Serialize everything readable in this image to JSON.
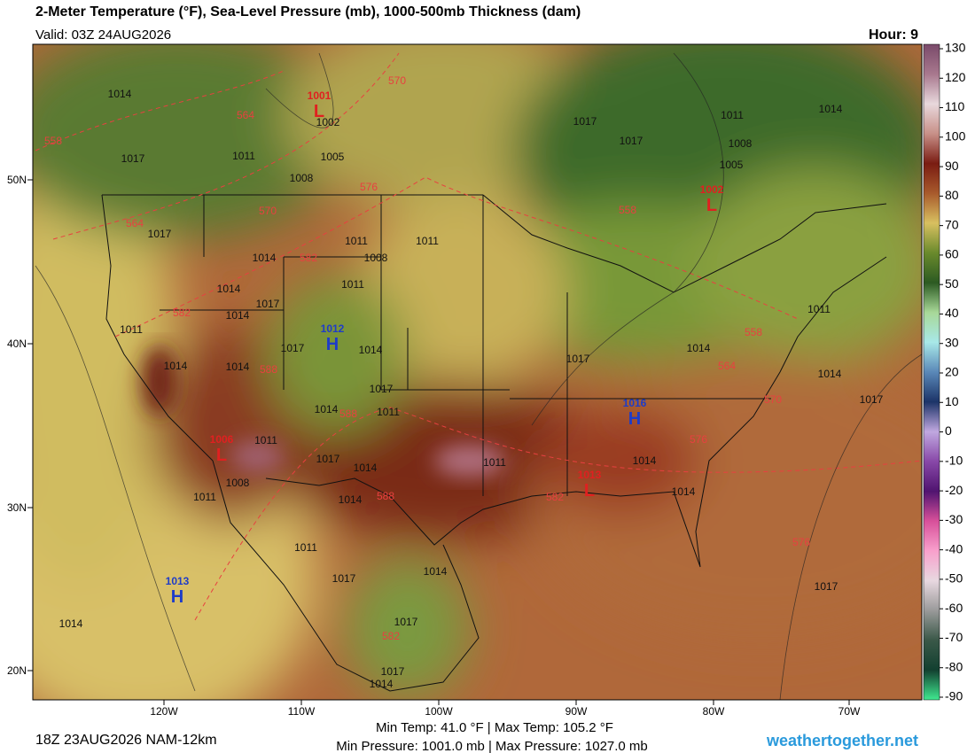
{
  "header": {
    "title": "2-Meter Temperature (°F), Sea-Level Pressure (mb), 1000-500mb Thickness (dam)",
    "valid": "Valid: 03Z 24AUG2026",
    "hour": "Hour: 9"
  },
  "map": {
    "lon_labels": [
      "120W",
      "110W",
      "100W",
      "90W",
      "80W",
      "70W"
    ],
    "lat_labels": [
      "50N",
      "40N",
      "30N",
      "20N"
    ],
    "pressure_centers": [
      {
        "letter": "H",
        "label": "1013",
        "color": "#1e3cc8"
      },
      {
        "letter": "H",
        "label": "1016",
        "color": "#1e3cc8"
      },
      {
        "letter": "H",
        "label": "1012",
        "color": "#1e3cc8"
      },
      {
        "letter": "L",
        "label": "1001",
        "color": "#e02020"
      },
      {
        "letter": "L",
        "label": "1002",
        "color": "#e02020"
      },
      {
        "letter": "L",
        "label": "1013",
        "color": "#e02020"
      },
      {
        "letter": "L",
        "label": "1006",
        "color": "#e02020"
      }
    ],
    "isobar_labels": [
      "1014",
      "1017",
      "1011",
      "1008",
      "1005",
      "1002",
      "1017",
      "1017",
      "1011",
      "1014",
      "1008",
      "1005",
      "1011",
      "1011",
      "1008",
      "1011",
      "1014",
      "1017",
      "1014",
      "1014",
      "1017",
      "1011",
      "1014",
      "1014",
      "1017",
      "1014",
      "1017",
      "1014",
      "1011",
      "1017",
      "1014",
      "1011",
      "1014",
      "1014",
      "1014",
      "1017",
      "1011",
      "1014",
      "1017",
      "1014",
      "1011",
      "1017",
      "1014",
      "1017",
      "1017",
      "1014",
      "1014",
      "1011",
      "1008",
      "1017",
      "1011"
    ],
    "thickness_labels": [
      "558",
      "564",
      "570",
      "576",
      "570",
      "564",
      "582",
      "582",
      "588",
      "588",
      "588",
      "582",
      "558",
      "558",
      "564",
      "570",
      "576",
      "576",
      "582"
    ]
  },
  "colorbar": {
    "ticks": [
      130,
      120,
      110,
      100,
      90,
      80,
      70,
      60,
      50,
      40,
      30,
      20,
      10,
      0,
      -10,
      -20,
      -30,
      -40,
      -50,
      -60,
      -70,
      -80,
      -90
    ],
    "colors": [
      "#7a4a6a",
      "#a8788e",
      "#e8d8dc",
      "#c89088",
      "#7a1c12",
      "#a85a2c",
      "#d8c060",
      "#6a8a2c",
      "#2c5a22",
      "#a8d898",
      "#a8e8e8",
      "#5a88b8",
      "#1c3468",
      "#c0a8e0",
      "#8848a8",
      "#501470",
      "#d8509a",
      "#f8a0cc",
      "#e8d8e0",
      "#9a9a9a",
      "#3a5848",
      "#124030",
      "#40e890"
    ]
  },
  "footer": {
    "run": "18Z 23AUG2026 NAM-12km",
    "temp": "Min Temp:  41.0 °F | Max Temp: 105.2 °F",
    "pressure": "Min Pressure: 1001.0 mb | Max Pressure: 1027.0 mb",
    "site": "weathertogether.net"
  }
}
